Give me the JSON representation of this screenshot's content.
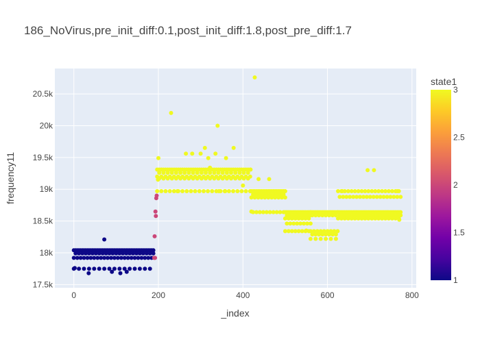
{
  "chart_data": {
    "type": "scatter",
    "title": "186_NoVirus,pre_init_diff:0.1,post_init_diff:1.8,post_pre_diff:1.7",
    "xlabel": "_index",
    "ylabel": "frequency11",
    "xlim": [
      -45,
      810
    ],
    "ylim": [
      17450,
      20900
    ],
    "x_ticks": [
      0,
      200,
      400,
      600,
      800
    ],
    "x_tick_labels": [
      "0",
      "200",
      "400",
      "600",
      "800"
    ],
    "y_ticks": [
      17500,
      18000,
      18500,
      19000,
      19500,
      20000,
      20500
    ],
    "y_tick_labels": [
      "17.5k",
      "18k",
      "18.5k",
      "19k",
      "19.5k",
      "20k",
      "20.5k"
    ],
    "grid": true,
    "legend": "colorbar-right",
    "colorbar": {
      "title": "state1",
      "min": 1,
      "max": 3,
      "ticks": [
        1,
        1.5,
        2,
        2.5,
        3
      ],
      "tick_labels": [
        "1",
        "1.5",
        "2",
        "2.5",
        "3"
      ],
      "colorscale": [
        "#0d0887",
        "#46039f",
        "#7201a8",
        "#9c179e",
        "#bd3786",
        "#d8576b",
        "#ed7953",
        "#fb9f3a",
        "#fdca26",
        "#f0f921"
      ]
    },
    "series": [
      {
        "state": 1,
        "segments": [
          {
            "x_start": 0,
            "x_end": 190,
            "step": 4,
            "levels": [
              18040,
              17990,
              17920
            ],
            "extra_levels": [
              17750
            ],
            "extra_every": 3
          }
        ],
        "points": [
          [
            72,
            18210
          ],
          [
            2,
            17760
          ],
          [
            35,
            17680
          ],
          [
            90,
            17700
          ],
          [
            110,
            17680
          ],
          [
            125,
            17700
          ]
        ]
      },
      {
        "state": 2,
        "points": [
          [
            191,
            18260
          ],
          [
            193,
            18650
          ],
          [
            194,
            18580
          ],
          [
            195,
            18860
          ],
          [
            196,
            18900
          ],
          [
            192,
            17920
          ],
          [
            190,
            17920
          ]
        ]
      },
      {
        "state": 3,
        "segments": [
          {
            "x_start": 197,
            "x_end": 420,
            "step": 5,
            "levels": [
              19310,
              19260,
              19200,
              19170
            ],
            "extra_levels": [
              18970
            ],
            "extra_every": 2
          },
          {
            "x_start": 420,
            "x_end": 500,
            "step": 4,
            "levels": [
              18970,
              18920,
              18870,
              18640
            ],
            "extra_levels": [],
            "extra_every": 0
          },
          {
            "x_start": 500,
            "x_end": 560,
            "step": 4,
            "levels": [
              18640,
              18590,
              18540,
              18460
            ],
            "extra_levels": [
              18340
            ],
            "extra_every": 2
          },
          {
            "x_start": 560,
            "x_end": 625,
            "step": 4,
            "levels": [
              18640,
              18590,
              18340,
              18290
            ],
            "extra_levels": [
              18220
            ],
            "extra_every": 3
          },
          {
            "x_start": 625,
            "x_end": 775,
            "step": 4,
            "levels": [
              18640,
              18590,
              18540,
              18880
            ],
            "extra_levels": [
              18970
            ],
            "extra_every": 2
          }
        ],
        "points": [
          [
            199,
            19150
          ],
          [
            200,
            19490
          ],
          [
            207,
            19310
          ],
          [
            230,
            20200
          ],
          [
            245,
            18970
          ],
          [
            265,
            19560
          ],
          [
            280,
            19560
          ],
          [
            300,
            19560
          ],
          [
            310,
            19650
          ],
          [
            318,
            19490
          ],
          [
            322,
            19340
          ],
          [
            335,
            19560
          ],
          [
            340,
            20000
          ],
          [
            343,
            18970
          ],
          [
            358,
            18970
          ],
          [
            360,
            19490
          ],
          [
            378,
            19650
          ],
          [
            400,
            19060
          ],
          [
            418,
            19310
          ],
          [
            428,
            20760
          ],
          [
            420,
            18650
          ],
          [
            437,
            19160
          ],
          [
            462,
            19160
          ],
          [
            550,
            18350
          ],
          [
            635,
            18970
          ],
          [
            695,
            19300
          ],
          [
            710,
            19300
          ],
          [
            770,
            18520
          ],
          [
            765,
            18970
          ]
        ]
      }
    ]
  }
}
